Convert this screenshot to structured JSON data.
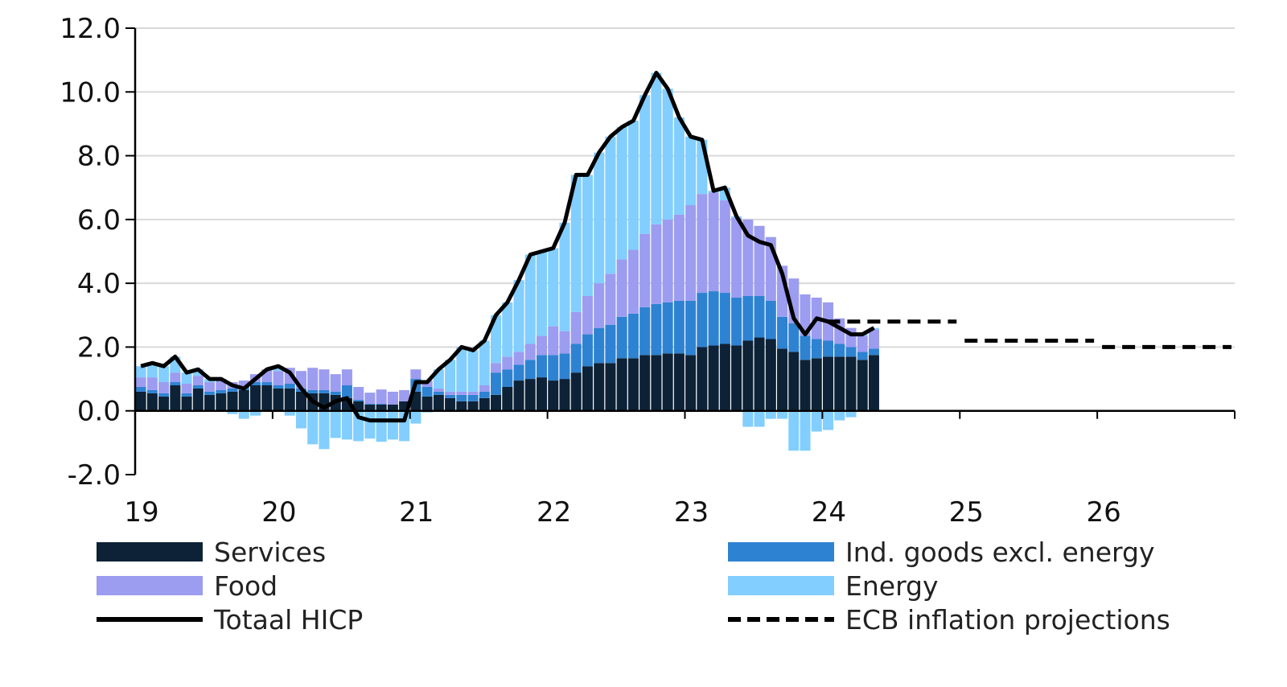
{
  "chart_data": {
    "type": "bar",
    "stacked": true,
    "title": "",
    "xlabel": "",
    "ylabel": "",
    "ylim": [
      -2,
      12
    ],
    "yticks": [
      "12.0",
      "10.0",
      "8.0",
      "6.0",
      "4.0",
      "2.0",
      "0.0",
      "-2.0"
    ],
    "ytick_values": [
      12,
      10,
      8,
      6,
      4,
      2,
      0,
      -2
    ],
    "xticks": [
      "19",
      "20",
      "21",
      "22",
      "23",
      "24",
      "25",
      "26"
    ],
    "x_start": "2019-01",
    "x_end": "2026-12",
    "frequency": "monthly",
    "grid": "horizontal",
    "legend_placement": "bottom",
    "series": [
      {
        "name": "Services",
        "kind": "bar",
        "color": "#0d2236",
        "values": [
          0.6,
          0.55,
          0.45,
          0.8,
          0.45,
          0.7,
          0.5,
          0.55,
          0.6,
          0.65,
          0.8,
          0.8,
          0.7,
          0.7,
          0.6,
          0.55,
          0.55,
          0.5,
          0.4,
          0.3,
          0.2,
          0.2,
          0.2,
          0.3,
          0.6,
          0.45,
          0.5,
          0.4,
          0.3,
          0.3,
          0.4,
          0.5,
          0.75,
          0.95,
          1.0,
          1.05,
          0.95,
          1.0,
          1.2,
          1.4,
          1.5,
          1.5,
          1.65,
          1.65,
          1.75,
          1.75,
          1.8,
          1.8,
          1.75,
          2.0,
          2.05,
          2.1,
          2.05,
          2.2,
          2.3,
          2.25,
          1.95,
          1.85,
          1.6,
          1.65,
          1.7,
          1.7,
          1.7,
          1.6,
          1.75
        ]
      },
      {
        "name": "Ind. goods excl. energy",
        "kind": "bar",
        "color": "#2e82d2",
        "values": [
          0.15,
          0.1,
          0.1,
          0.1,
          0.1,
          0.1,
          0.1,
          0.1,
          0.1,
          0.1,
          0.1,
          0.1,
          0.1,
          0.15,
          0.1,
          0.1,
          0.1,
          0.1,
          0.4,
          0.05,
          0.02,
          0.02,
          0.0,
          0.0,
          0.4,
          0.3,
          0.1,
          0.1,
          0.2,
          0.2,
          0.2,
          0.7,
          0.55,
          0.5,
          0.6,
          0.7,
          0.8,
          0.8,
          0.9,
          1.0,
          1.1,
          1.2,
          1.3,
          1.4,
          1.5,
          1.6,
          1.6,
          1.65,
          1.7,
          1.7,
          1.7,
          1.6,
          1.5,
          1.4,
          1.3,
          1.2,
          1.0,
          0.9,
          0.75,
          0.6,
          0.5,
          0.4,
          0.3,
          0.25,
          0.2
        ]
      },
      {
        "name": "Food",
        "kind": "bar",
        "color": "#9c9cf0",
        "values": [
          0.3,
          0.4,
          0.35,
          0.3,
          0.3,
          0.3,
          0.3,
          0.3,
          0.2,
          0.2,
          0.25,
          0.4,
          0.45,
          0.5,
          0.55,
          0.7,
          0.65,
          0.55,
          0.5,
          0.4,
          0.35,
          0.45,
          0.4,
          0.35,
          0.3,
          0.2,
          0.1,
          0.1,
          0.1,
          0.1,
          0.2,
          0.3,
          0.4,
          0.4,
          0.5,
          0.6,
          0.9,
          0.7,
          1.0,
          1.2,
          1.4,
          1.6,
          1.8,
          2.0,
          2.3,
          2.5,
          2.6,
          2.7,
          3.0,
          3.1,
          3.1,
          2.9,
          2.5,
          2.4,
          2.2,
          2.0,
          1.6,
          1.4,
          1.3,
          1.3,
          1.2,
          0.8,
          0.6,
          0.5,
          0.6
        ]
      },
      {
        "name": "Energy",
        "kind": "bar",
        "color": "#82ceff",
        "values": [
          0.35,
          0.45,
          0.5,
          0.5,
          0.35,
          0.2,
          0.1,
          0.05,
          -0.1,
          -0.25,
          -0.15,
          0.0,
          0.15,
          -0.15,
          -0.55,
          -1.05,
          -1.2,
          -0.85,
          -0.9,
          -0.95,
          -0.87,
          -0.97,
          -0.9,
          -0.95,
          -0.4,
          -0.05,
          0.6,
          1.0,
          1.4,
          1.3,
          1.4,
          1.5,
          1.7,
          2.25,
          2.8,
          2.65,
          2.45,
          3.4,
          4.3,
          3.8,
          4.1,
          4.3,
          4.15,
          4.05,
          4.35,
          4.75,
          4.1,
          3.05,
          2.15,
          1.7,
          0.05,
          0.4,
          0.05,
          -0.5,
          -0.5,
          -0.25,
          -0.25,
          -1.25,
          -1.25,
          -0.65,
          -0.6,
          -0.3,
          -0.2,
          0.05,
          0.05
        ]
      },
      {
        "name": "Totaal HICP",
        "kind": "line",
        "color": "#000000",
        "values": [
          1.4,
          1.5,
          1.4,
          1.7,
          1.2,
          1.3,
          1.0,
          1.0,
          0.8,
          0.7,
          1.0,
          1.3,
          1.4,
          1.2,
          0.7,
          0.3,
          0.1,
          0.3,
          0.4,
          -0.2,
          -0.3,
          -0.3,
          -0.3,
          -0.3,
          0.9,
          0.9,
          1.3,
          1.6,
          2.0,
          1.9,
          2.2,
          3.0,
          3.4,
          4.1,
          4.9,
          5.0,
          5.1,
          5.9,
          7.4,
          7.4,
          8.1,
          8.6,
          8.9,
          9.1,
          9.9,
          10.6,
          10.1,
          9.2,
          8.6,
          8.5,
          6.9,
          7.0,
          6.1,
          5.5,
          5.3,
          5.2,
          4.3,
          2.9,
          2.4,
          2.9,
          2.8,
          2.6,
          2.4,
          2.4,
          2.6
        ]
      },
      {
        "name": "ECB inflation projections",
        "kind": "dashed-step",
        "color": "#000000",
        "years": [
          "2024",
          "2025",
          "2026"
        ],
        "values": [
          2.8,
          2.2,
          2.0
        ]
      }
    ]
  },
  "legend": {
    "items": [
      "Services",
      "Ind. goods excl. energy",
      "Food",
      "Energy",
      "Totaal HICP",
      "ECB inflation projections"
    ]
  }
}
